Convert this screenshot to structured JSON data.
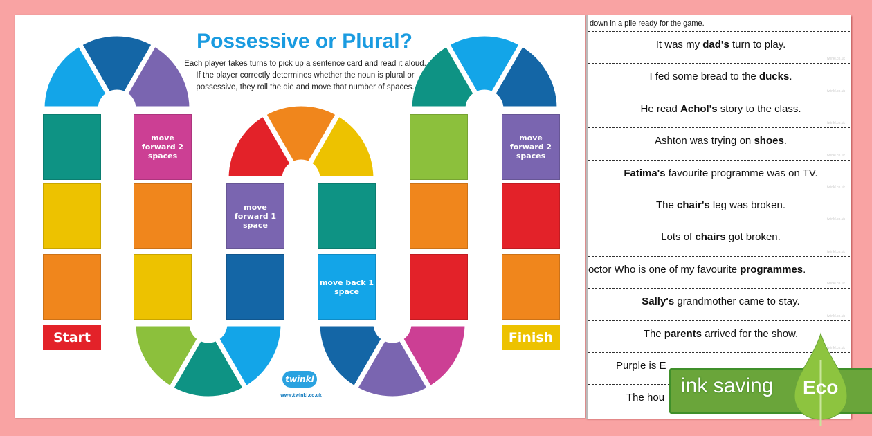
{
  "colors": {
    "teal": "#0e9384",
    "yellow": "#edc200",
    "orange": "#f0861c",
    "red": "#e32229",
    "sky": "#13a5e8",
    "darkblue": "#1466a6",
    "purple": "#7a65b0",
    "magenta": "#cc3f94",
    "green": "#8cc03c",
    "background": "#f9a3a3",
    "title": "#1a9be0"
  },
  "board": {
    "title": "Possessive or Plural?",
    "instructions": "Each player takes turns to pick up a sentence card and read it aloud. If the player correctly determines whether the noun is plural or possessive, they roll the die and move that number of spaces.",
    "start_label": "Start",
    "finish_label": "Finish",
    "squares": [
      {
        "color": "teal",
        "label": ""
      },
      {
        "color": "yellow",
        "label": ""
      },
      {
        "color": "orange",
        "label": ""
      },
      {
        "color": "magenta",
        "label": "move forward 2 spaces"
      },
      {
        "color": "orange",
        "label": ""
      },
      {
        "color": "yellow",
        "label": ""
      },
      {
        "color": "purple",
        "label": "move forward 1 space"
      },
      {
        "color": "darkblue",
        "label": ""
      },
      {
        "color": "teal",
        "label": ""
      },
      {
        "color": "sky",
        "label": "move back 1 space"
      },
      {
        "color": "green",
        "label": ""
      },
      {
        "color": "orange",
        "label": ""
      },
      {
        "color": "red",
        "label": ""
      },
      {
        "color": "purple",
        "label": "move forward 2 spaces"
      },
      {
        "color": "red",
        "label": ""
      },
      {
        "color": "orange",
        "label": ""
      }
    ],
    "arches": [
      {
        "colors": [
          "sky",
          "darkblue",
          "purple"
        ]
      },
      {
        "colors": [
          "green",
          "teal",
          "sky"
        ]
      },
      {
        "colors": [
          "red",
          "orange",
          "yellow"
        ]
      },
      {
        "colors": [
          "darkblue",
          "purple",
          "magenta"
        ]
      },
      {
        "colors": [
          "teal",
          "sky",
          "darkblue"
        ]
      }
    ],
    "logo_text": "twinkl",
    "logo_url": "www.twinkl.co.uk"
  },
  "cards": {
    "intro_fragment": "down in a pile ready for the game.",
    "watermark": "twinkl.co.uk",
    "sentences": [
      [
        {
          "t": "It was my "
        },
        {
          "t": "dad's",
          "b": true
        },
        {
          "t": " turn to play."
        }
      ],
      [
        {
          "t": "I fed some bread to the "
        },
        {
          "t": "ducks",
          "b": true
        },
        {
          "t": "."
        }
      ],
      [
        {
          "t": "He read "
        },
        {
          "t": "Achol's",
          "b": true
        },
        {
          "t": " story to the class."
        }
      ],
      [
        {
          "t": "Ashton was trying on "
        },
        {
          "t": "shoes",
          "b": true
        },
        {
          "t": "."
        }
      ],
      [
        {
          "t": "Fatima's",
          "b": true
        },
        {
          "t": " favourite programme was on TV."
        }
      ],
      [
        {
          "t": "The "
        },
        {
          "t": "chair's",
          "b": true
        },
        {
          "t": " leg was broken."
        }
      ],
      [
        {
          "t": "Lots of "
        },
        {
          "t": "chairs",
          "b": true
        },
        {
          "t": " got broken."
        }
      ],
      [
        {
          "t": "octor Who is one of my favourite "
        },
        {
          "t": "programmes",
          "b": true
        },
        {
          "t": "."
        }
      ],
      [
        {
          "t": "Sally's",
          "b": true
        },
        {
          "t": " grandmother came to stay."
        }
      ],
      [
        {
          "t": "The "
        },
        {
          "t": "parents",
          "b": true
        },
        {
          "t": " arrived for the show."
        }
      ],
      [
        {
          "t": "Purple is E"
        }
      ],
      [
        {
          "t": "The hou"
        }
      ]
    ]
  },
  "eco_badge": {
    "text": "ink saving",
    "label": "Eco",
    "bar_color": "#6aa53a",
    "leaf_color": "#8dc43f"
  }
}
